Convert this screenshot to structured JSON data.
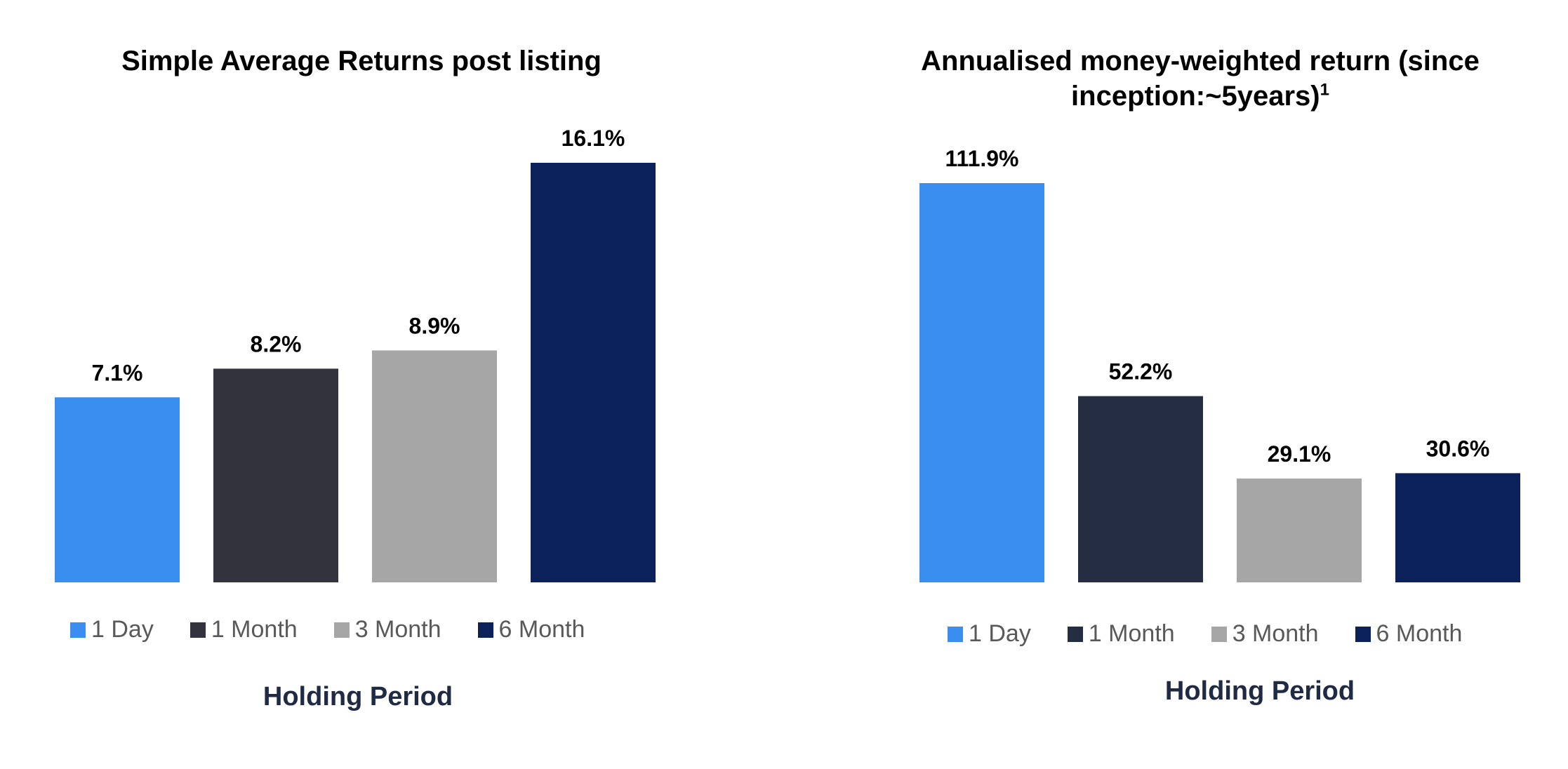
{
  "chart_data": [
    {
      "type": "bar",
      "title": "Simple Average Returns post listing",
      "title_sup": "",
      "xlabel": "Holding Period",
      "ylabel": "",
      "categories": [
        "1 Day",
        "1 Month",
        "3 Month",
        "6 Month"
      ],
      "values": [
        7.1,
        8.2,
        8.9,
        16.1
      ],
      "value_labels": [
        "7.1%",
        "8.2%",
        "8.9%",
        "16.1%"
      ],
      "colors": [
        "#3a8ef0",
        "#33333d",
        "#a6a6a6",
        "#0b2159"
      ],
      "ylim": [
        0,
        16.1
      ],
      "grid": false,
      "legend_position": "bottom"
    },
    {
      "type": "bar",
      "title": "Annualised money-weighted return (since inception:~5years)",
      "title_sup": "1",
      "xlabel": "Holding Period",
      "ylabel": "",
      "categories": [
        "1 Day",
        "1 Month",
        "3 Month",
        "6 Month"
      ],
      "values": [
        111.9,
        52.2,
        29.1,
        30.6
      ],
      "value_labels": [
        "111.9%",
        "52.2%",
        "29.1%",
        "30.6%"
      ],
      "colors": [
        "#3a8ef0",
        "#252d42",
        "#a6a6a6",
        "#0b2159"
      ],
      "ylim": [
        0,
        111.9
      ],
      "grid": false,
      "legend_position": "bottom"
    }
  ]
}
